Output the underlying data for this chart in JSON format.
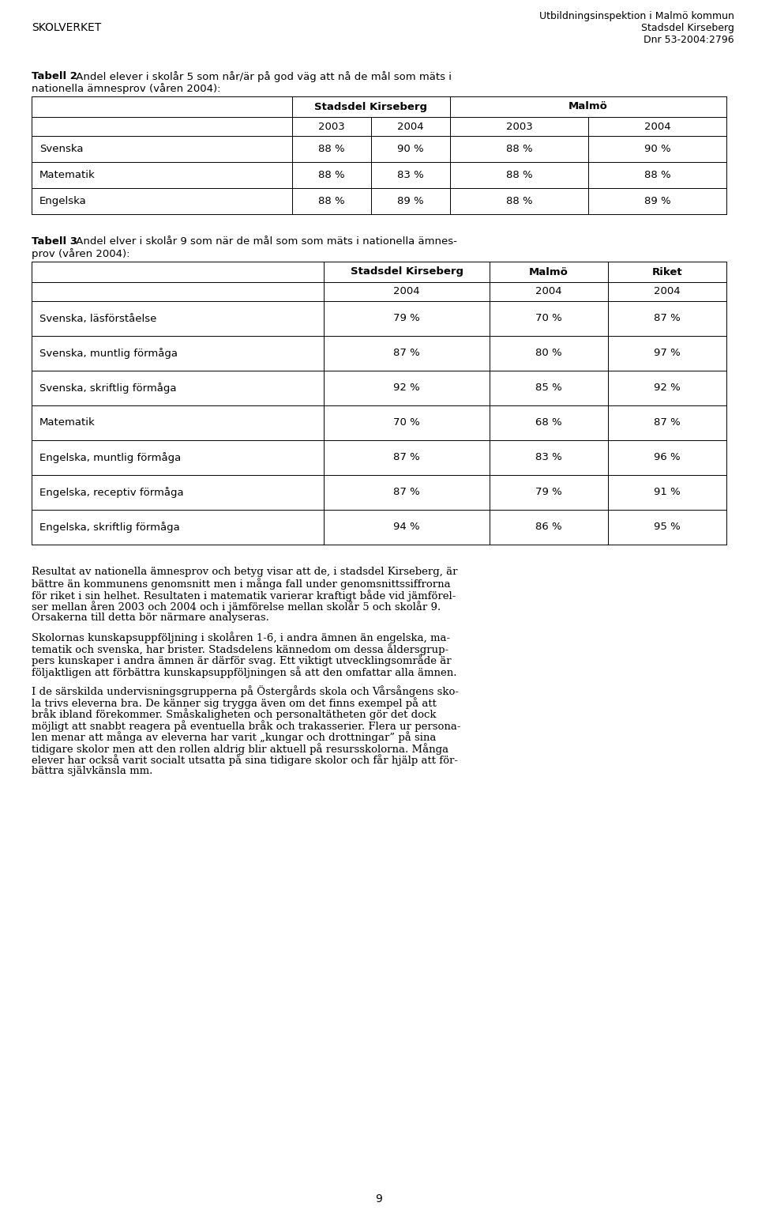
{
  "header_left": "SKOLVERKET",
  "header_right_line1": "Utbildningsinspektion i Malmö kommun",
  "header_right_line2": "Stadsdel Kirseberg",
  "header_right_line3": "Dnr 53-2004:2796",
  "tabell2_title_bold": "Tabell 2",
  "tabell2_title_rest": " Andel elever i skolår 5 som når/är på god väg att nå de mål som mäts i nationella ämnesprov (våren 2004):",
  "tabell2_title_line1": "Tabell 2 Andel elever i skolår 5 som når/är på god väg att nå de mål som mäts i",
  "tabell2_title_line2": "nationella ämnesprov (våren 2004):",
  "tabell2_col_headers": [
    "Stadsdel Kirseberg",
    "Malmö"
  ],
  "tabell2_sub_headers": [
    "2003",
    "2004",
    "2003",
    "2004"
  ],
  "tabell2_rows": [
    [
      "Svenska",
      "88 %",
      "90 %",
      "88 %",
      "90 %"
    ],
    [
      "Matematik",
      "88 %",
      "83 %",
      "88 %",
      "88 %"
    ],
    [
      "Engelska",
      "88 %",
      "89 %",
      "88 %",
      "89 %"
    ]
  ],
  "tabell3_title_bold": "Tabell 3",
  "tabell3_title_line1": "Tabell 3 Andel elver i skolår 9 som när de mål som som mäts i nationella ämnes-",
  "tabell3_title_line2": "prov (våren 2004):",
  "tabell3_col_headers": [
    "Stadsdel Kirseberg",
    "Malmö",
    "Riket"
  ],
  "tabell3_sub_headers": [
    "2004",
    "2004",
    "2004"
  ],
  "tabell3_rows": [
    [
      "Svenska, läsförståelse",
      "79 %",
      "70 %",
      "87 %"
    ],
    [
      "Svenska, muntlig förmåga",
      "87 %",
      "80 %",
      "97 %"
    ],
    [
      "Svenska, skriftlig förmåga",
      "92 %",
      "85 %",
      "92 %"
    ],
    [
      "Matematik",
      "70 %",
      "68 %",
      "87 %"
    ],
    [
      "Engelska, muntlig förmåga",
      "87 %",
      "83 %",
      "96 %"
    ],
    [
      "Engelska, receptiv förmåga",
      "87 %",
      "79 %",
      "91 %"
    ],
    [
      "Engelska, skriftlig förmåga",
      "94 %",
      "86 %",
      "95 %"
    ]
  ],
  "para1_lines": [
    "Resultat av nationella ämnesprov och betyg visar att de, i stadsdel Kirseberg, är",
    "bättre än kommunens genomsnitt men i många fall under genomsnittssiffrorna",
    "för riket i sin helhet. Resultaten i matematik varierar kraftigt både vid jämförel-",
    "ser mellan åren 2003 och 2004 och i jämförelse mellan skolår 5 och skolår 9.",
    "Orsakerna till detta bör närmare analyseras."
  ],
  "para2_lines": [
    "Skolornas kunskapsuppföljning i skolåren 1-6, i andra ämnen än engelska, ma-",
    "tematik och svenska, har brister. Stadsdelens kännedom om dessa åldersgrup-",
    "pers kunskaper i andra ämnen är därför svag. Ett viktigt utvecklingsområde är",
    "följaktligen att förbättra kunskapsuppföljningen så att den omfattar alla ämnen."
  ],
  "para3_lines": [
    "I de särskilda undervisningsgrupperna på Östergårds skola och Vårsångens sko-",
    "la trivs eleverna bra. De känner sig trygga även om det finns exempel på att",
    "bråk ibland förekommer. Småskaligheten och personaltätheten gör det dock",
    "möjligt att snabbt reagera på eventuella bråk och trakasserier. Flera ur persona-",
    "len menar att många av eleverna har varit „kungar och drottningar” på sina",
    "tidigare skolor men att den rollen aldrig blir aktuell på resursskolorna. Många",
    "elever har också varit socialt utsatta på sina tidigare skolor och får hjälp att för-",
    "bättra självkänsla mm."
  ],
  "page_number": "9",
  "bg_color": "#ffffff",
  "text_color": "#000000"
}
